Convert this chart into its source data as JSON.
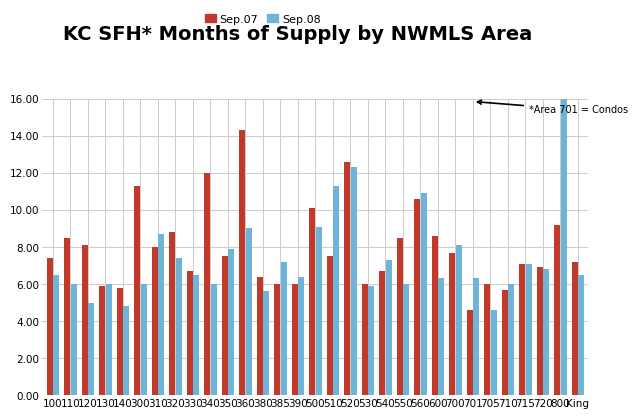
{
  "title": "KC SFH* Months of Supply by NWMLS Area",
  "annotation": "*Area 701 = Condos",
  "legend_labels": [
    "Sep.07",
    "Sep.08"
  ],
  "categories": [
    "100",
    "110",
    "120",
    "130",
    "140",
    "300",
    "310",
    "320",
    "330",
    "340",
    "350",
    "360",
    "380",
    "385",
    "390",
    "500",
    "510",
    "520",
    "530",
    "540",
    "550",
    "560",
    "600",
    "700",
    "701",
    "705",
    "710",
    "715",
    "720",
    "800",
    "King"
  ],
  "sep07": [
    7.4,
    8.5,
    8.1,
    5.9,
    5.8,
    11.3,
    8.0,
    8.8,
    6.7,
    12.0,
    7.5,
    14.3,
    6.4,
    6.0,
    6.0,
    10.1,
    7.5,
    12.6,
    6.0,
    6.7,
    8.5,
    10.6,
    8.6,
    7.7,
    4.6,
    6.0,
    5.7,
    7.1,
    6.9,
    9.2,
    7.2
  ],
  "sep08": [
    6.5,
    6.0,
    5.0,
    6.0,
    4.8,
    6.0,
    8.7,
    7.4,
    6.5,
    6.0,
    7.9,
    9.0,
    5.6,
    7.2,
    6.4,
    9.1,
    11.3,
    12.3,
    5.9,
    7.3,
    6.0,
    10.9,
    6.3,
    8.1,
    6.3,
    4.6,
    6.0,
    7.1,
    6.8,
    16.0,
    6.5
  ],
  "ylim": [
    0,
    16.0
  ],
  "yticks": [
    0.0,
    2.0,
    4.0,
    6.0,
    8.0,
    10.0,
    12.0,
    14.0,
    16.0
  ],
  "color_sep07": "#C0392B",
  "color_sep08": "#6EB4D9",
  "background_color": "#FFFFFF",
  "grid_color": "#CCCCCC",
  "title_fontsize": 14,
  "axis_fontsize": 7.5,
  "legend_fontsize": 8
}
